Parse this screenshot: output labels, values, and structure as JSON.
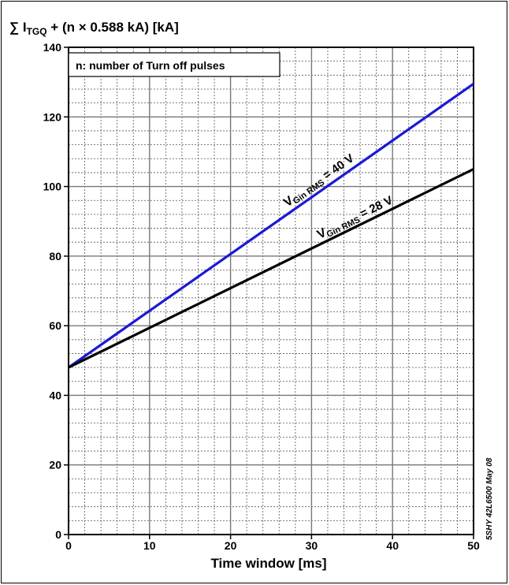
{
  "chart_data": {
    "type": "line",
    "ylabel_prefix": "∑ I",
    "ylabel_sub": "TGQ",
    "ylabel_suffix": " + (n × 0.588 kA) [kA]",
    "xlabel": "Time window [ms]",
    "xlim": [
      0,
      50
    ],
    "ylim": [
      0,
      140
    ],
    "xticks": [
      0,
      10,
      20,
      30,
      40,
      50
    ],
    "yticks": [
      0,
      20,
      40,
      60,
      80,
      100,
      120,
      140
    ],
    "x_minor_step": 2,
    "y_minor_step": 4,
    "grid": true,
    "annotation": "n: number of Turn off pulses",
    "side_note": "5SHY 42L6500 May 08",
    "series": [
      {
        "label_main": "V",
        "label_sub": "Gin RMS",
        "label_value": " = 40 V",
        "color": "#1a1ad6",
        "x": [
          0,
          50
        ],
        "y": [
          48,
          129.5
        ]
      },
      {
        "label_main": "V",
        "label_sub": "Gin RMS",
        "label_value": " = 28 V",
        "color": "#000000",
        "x": [
          0,
          50
        ],
        "y": [
          48,
          105
        ]
      }
    ]
  }
}
